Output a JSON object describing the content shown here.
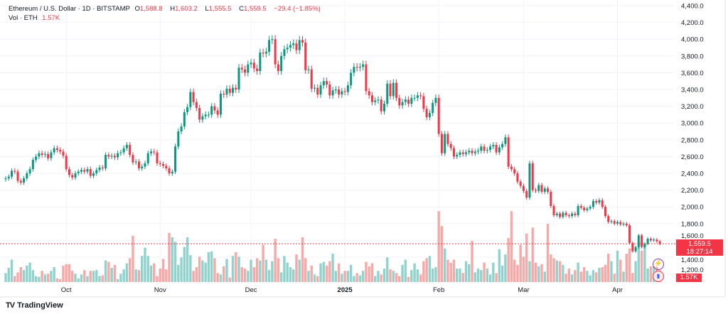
{
  "header": {
    "symbol": "Ethereum / U.S. Dollar · 1D · BITSTAMP",
    "o_label": "O",
    "o_value": "1,588.8",
    "h_label": "H",
    "h_value": "1,603.2",
    "l_label": "L",
    "l_value": "1,555.5",
    "c_label": "C",
    "c_value": "1,559.5",
    "change": "−29.4 (−1.85%)",
    "vol_label": "Vol · ETH",
    "vol_value": "1.57K"
  },
  "price_label": {
    "price": "1,559.5",
    "countdown": "18:27:14"
  },
  "volume_label": "1.57K",
  "branding": "TradingView",
  "colors": {
    "up": "#089981",
    "down": "#f23645",
    "up_vol": "#92d2cc",
    "down_vol": "#f7a9a7",
    "grid": "#f0f3fa"
  },
  "chart_data": {
    "type": "candlestick",
    "title": "Ethereum / U.S. Dollar · 1D · BITSTAMP",
    "start_date": "2024-09-11",
    "first_open": 2330,
    "x_ticks": [
      "Oct",
      "Nov",
      "Dec",
      "2025",
      "Feb",
      "Mar",
      "Apr"
    ],
    "x_tick_day_index": [
      20,
      51,
      81,
      112,
      143,
      171,
      202
    ],
    "y_ticks": [
      "1,200.0",
      "1,400.0",
      "1,600.0",
      "1,800.0",
      "2,000.0",
      "2,200.0",
      "2,400.0",
      "2,600.0",
      "2,800.0",
      "3,000.0",
      "3,200.0",
      "3,400.0",
      "3,600.0",
      "3,800.0",
      "4,000.0",
      "4,200.0",
      "4,400.0"
    ],
    "y_tick_values": [
      1200,
      1400,
      1600,
      1800,
      2000,
      2200,
      2400,
      2600,
      2800,
      3000,
      3200,
      3400,
      3600,
      3800,
      4000,
      4200,
      4400
    ],
    "ylim": [
      1100,
      4400
    ],
    "closes": [
      2340,
      2360,
      2430,
      2420,
      2310,
      2290,
      2340,
      2400,
      2450,
      2560,
      2600,
      2640,
      2620,
      2630,
      2580,
      2650,
      2700,
      2680,
      2660,
      2610,
      2450,
      2380,
      2350,
      2400,
      2420,
      2440,
      2420,
      2450,
      2370,
      2400,
      2440,
      2470,
      2460,
      2620,
      2600,
      2610,
      2590,
      2640,
      2650,
      2700,
      2740,
      2620,
      2530,
      2540,
      2460,
      2480,
      2520,
      2640,
      2660,
      2650,
      2520,
      2510,
      2490,
      2460,
      2400,
      2420,
      2720,
      2900,
      2960,
      3130,
      3190,
      3370,
      3250,
      3180,
      3040,
      3080,
      3100,
      3100,
      3200,
      3150,
      3100,
      3350,
      3340,
      3410,
      3360,
      3420,
      3400,
      3660,
      3640,
      3600,
      3700,
      3720,
      3650,
      3620,
      3840,
      3830,
      3850,
      3990,
      4000,
      3700,
      3620,
      3800,
      3880,
      3900,
      3930,
      3950,
      3870,
      3990,
      3960,
      3630,
      3640,
      3410,
      3420,
      3340,
      3450,
      3500,
      3460,
      3330,
      3390,
      3400,
      3340,
      3380,
      3370,
      3450,
      3600,
      3670,
      3660,
      3670,
      3700,
      3380,
      3330,
      3250,
      3270,
      3280,
      3140,
      3230,
      3470,
      3320,
      3480,
      3300,
      3210,
      3250,
      3280,
      3230,
      3300,
      3300,
      3330,
      3320,
      3170,
      3070,
      3120,
      3240,
      3300,
      2870,
      2640,
      2870,
      2750,
      2700,
      2600,
      2620,
      2650,
      2630,
      2650,
      2670,
      2640,
      2660,
      2670,
      2720,
      2670,
      2680,
      2720,
      2740,
      2650,
      2710,
      2750,
      2830,
      2480,
      2450,
      2400,
      2300,
      2250,
      2190,
      2110,
      2520,
      2200,
      2190,
      2260,
      2180,
      2220,
      2180,
      2010,
      1900,
      1920,
      1880,
      1930,
      1900,
      1890,
      1920,
      1900,
      2010,
      1990,
      1960,
      1980,
      2000,
      2070,
      2050,
      2080,
      2000,
      1890,
      1820,
      1830,
      1800,
      1820,
      1790,
      1800,
      1780,
      1570,
      1470,
      1520,
      1660,
      1520,
      1560,
      1620,
      1600,
      1610,
      1588.8,
      1559.5
    ],
    "volume_unit": "K ETH",
    "volumes": [
      1.2,
      1.9,
      3.0,
      0.8,
      1.3,
      2.0,
      1.6,
      2.2,
      2.6,
      1.6,
      0.8,
      0.7,
      1.5,
      1.0,
      1.1,
      1.5,
      2.0,
      0.5,
      0.4,
      2.2,
      2.4,
      2.4,
      1.5,
      1.1,
      0.5,
      1.0,
      1.6,
      0.8,
      1.5,
      1.5,
      1.6,
      0.8,
      0.9,
      2.9,
      2.7,
      1.9,
      2.3,
      0.4,
      1.1,
      1.7,
      2.5,
      3.2,
      6.2,
      1.7,
      1.6,
      3.5,
      4.6,
      3.5,
      2.2,
      2.5,
      0.8,
      1.8,
      3.1,
      1.7,
      6.6,
      6.0,
      5.4,
      2.3,
      3.3,
      4.7,
      6.0,
      3.6,
      1.5,
      2.0,
      3.4,
      2.9,
      2.6,
      4.0,
      4.1,
      3.2,
      1.2,
      1.0,
      2.1,
      3.1,
      0.6,
      3.5,
      4.0,
      3.4,
      2.0,
      1.8,
      1.5,
      3.0,
      2.0,
      3.2,
      2.9,
      5.0,
      3.0,
      1.6,
      2.8,
      5.8,
      3.2,
      1.3,
      3.5,
      2.6,
      2.0,
      1.7,
      3.7,
      3.0,
      6.0,
      3.2,
      1.5,
      2.2,
      1.0,
      0.8,
      2.5,
      2.7,
      2.2,
      2.8,
      3.8,
      1.5,
      2.5,
      1.1,
      1.5,
      1.5,
      2.3,
      0.8,
      1.2,
      0.9,
      1.5,
      2.7,
      2.1,
      2.5,
      0.8,
      1.5,
      1.0,
      1.8,
      3.3,
      1.7,
      1.5,
      1.2,
      0.8,
      2.3,
      3.0,
      0.7,
      1.6,
      2.5,
      1.7,
      1.0,
      2.8,
      3.2,
      3.5,
      1.8,
      2.0,
      9.5,
      7.5,
      4.5,
      3.0,
      2.6,
      3.0,
      1.8,
      1.8,
      1.2,
      2.8,
      2.4,
      5.5,
      1.3,
      1.8,
      1.6,
      2.6,
      1.8,
      1.0,
      2.6,
      1.2,
      4.4,
      2.2,
      3.7,
      5.9,
      9.5,
      3.0,
      2.3,
      5.0,
      3.4,
      6.5,
      2.8,
      7.3,
      2.6,
      2.1,
      2.4,
      1.4,
      7.8,
      3.7,
      3.2,
      2.9,
      2.8,
      2.3,
      1.1,
      1.8,
      1.0,
      1.6,
      2.6,
      1.4,
      2.0,
      1.5,
      0.9,
      1.6,
      1.3,
      1.9,
      2.0,
      2.3,
      3.8,
      2.8,
      1.1,
      4.2,
      3.0,
      1.4,
      3.8,
      4.5,
      1.2,
      2.8,
      4.7,
      4.2,
      5.0,
      1.8,
      2.1,
      2.1,
      2.0,
      1.57
    ],
    "last_price": 1559.5
  }
}
